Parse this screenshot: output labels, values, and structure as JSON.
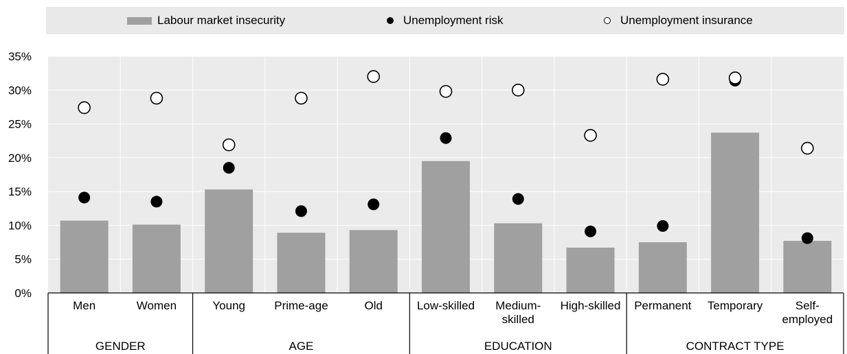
{
  "legend": {
    "bar_label": "Labour market insecurity",
    "risk_label": "Unemployment risk",
    "insurance_label": "Unemployment insurance"
  },
  "chart_data": {
    "type": "bar",
    "title": "",
    "xlabel": "",
    "ylabel": "",
    "ylim": [
      0,
      35
    ],
    "y_ticks": [
      "0%",
      "5%",
      "10%",
      "15%",
      "20%",
      "25%",
      "30%",
      "35%"
    ],
    "grid": true,
    "legend_position": "top",
    "colors": {
      "bar": "#a0a0a0",
      "plot_bg": "#ebebeb",
      "risk_marker": "#000000",
      "insurance_marker": "#ffffff"
    },
    "categories": [
      [
        "Men"
      ],
      [
        "Women"
      ],
      [
        "Young"
      ],
      [
        "Prime-age"
      ],
      [
        "Old"
      ],
      [
        "Low-skilled"
      ],
      [
        "Medium-",
        "skilled"
      ],
      [
        "High-skilled"
      ],
      [
        "Permanent"
      ],
      [
        "Temporary"
      ],
      [
        "Self-",
        "employed"
      ]
    ],
    "groups": [
      {
        "label": "GENDER",
        "count": 2
      },
      {
        "label": "AGE",
        "count": 3
      },
      {
        "label": "EDUCATION",
        "count": 3
      },
      {
        "label": "CONTRACT TYPE",
        "count": 3
      }
    ],
    "series": [
      {
        "name": "Labour market insecurity",
        "kind": "bar",
        "values": [
          10.7,
          10.1,
          15.3,
          8.9,
          9.3,
          19.5,
          10.3,
          6.7,
          7.5,
          23.7,
          7.7
        ]
      },
      {
        "name": "Unemployment risk",
        "kind": "marker-filled",
        "values": [
          14.1,
          13.5,
          18.5,
          12.1,
          13.1,
          22.9,
          13.9,
          9.1,
          9.9,
          31.4,
          8.1
        ]
      },
      {
        "name": "Unemployment insurance",
        "kind": "marker-hollow",
        "values": [
          27.4,
          28.8,
          21.9,
          28.8,
          32.0,
          29.8,
          30.0,
          23.3,
          31.6,
          31.8,
          21.4
        ]
      }
    ]
  }
}
